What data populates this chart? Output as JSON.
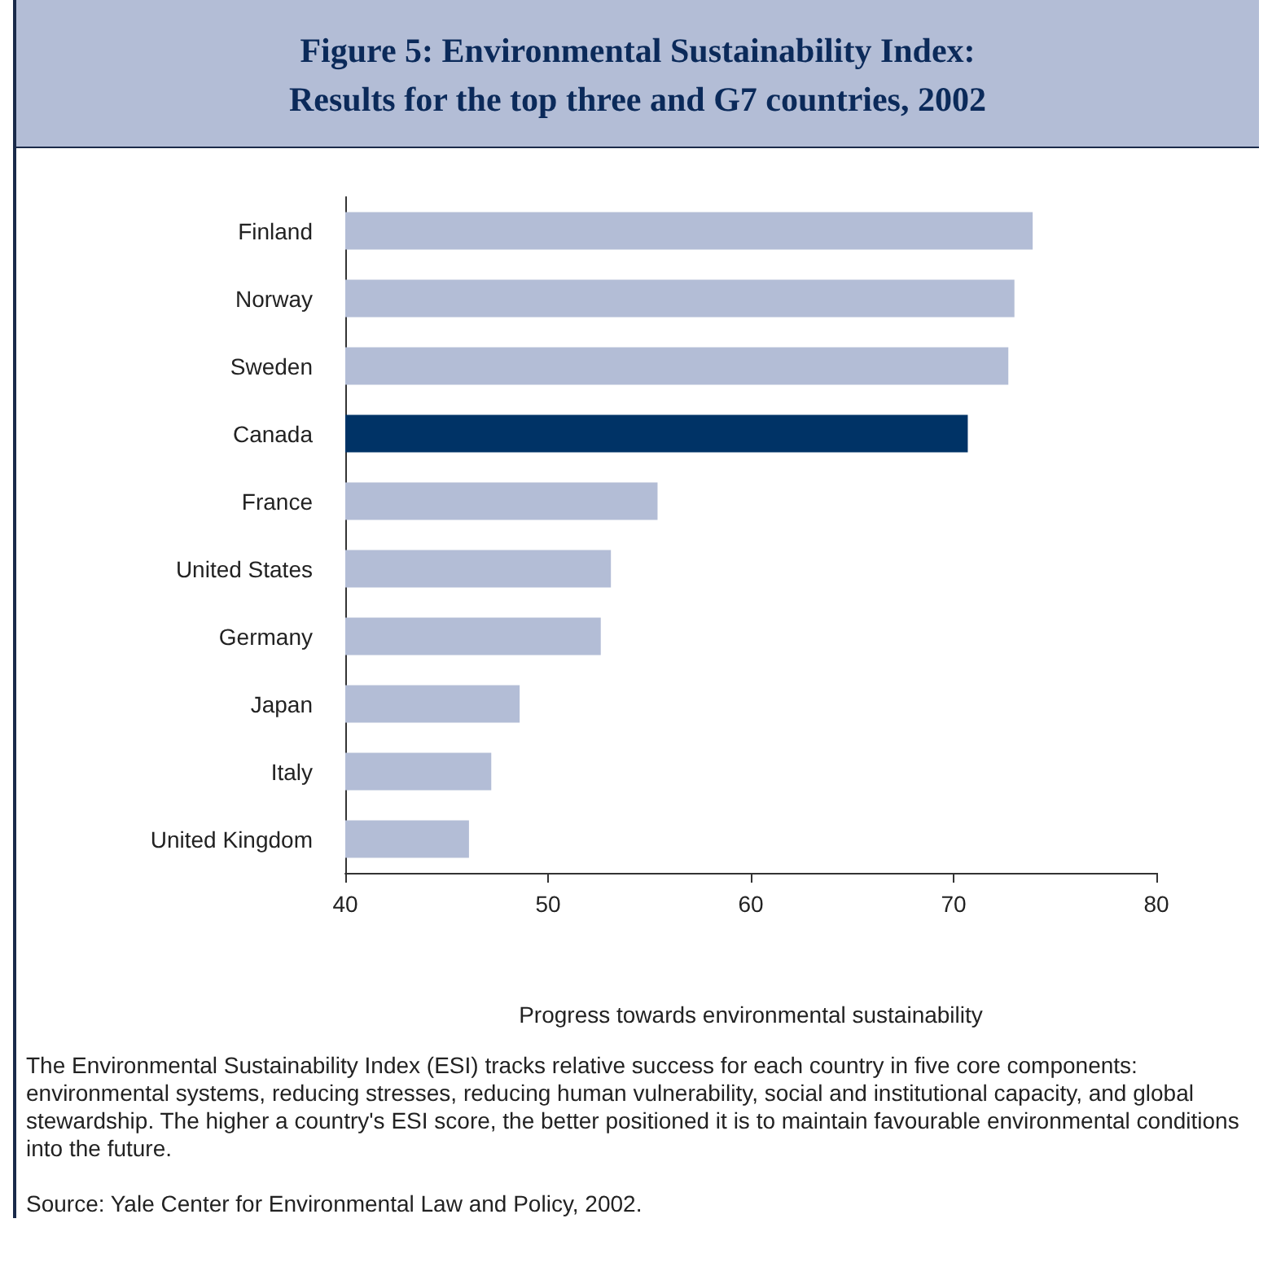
{
  "chart_data": {
    "type": "bar",
    "orientation": "horizontal",
    "title": "Figure 5: Environmental Sustainability Index:\nResults for the top three and G7 countries, 2002",
    "xlabel": "Progress towards environmental sustainability",
    "categories": [
      "Finland",
      "Norway",
      "Sweden",
      "Canada",
      "France",
      "United States",
      "Germany",
      "Japan",
      "Italy",
      "United Kingdom"
    ],
    "values": [
      73.9,
      73.0,
      72.7,
      70.7,
      55.4,
      53.1,
      52.6,
      48.6,
      47.2,
      46.1
    ],
    "colors": [
      "#b3bdd6",
      "#b3bdd6",
      "#b3bdd6",
      "#003366",
      "#b3bdd6",
      "#b3bdd6",
      "#b3bdd6",
      "#b3bdd6",
      "#b3bdd6",
      "#b3bdd6"
    ],
    "xlim": [
      40,
      80
    ],
    "xticks": [
      40,
      50,
      60,
      70,
      80
    ],
    "grid": false,
    "annotations": [
      "The Environmental Sustainability Index (ESI) tracks relative success for each country in five core components: environmental systems, reducing stresses, reducing human vulnerability, social and institutional capacity, and global stewardship. The higher a country's ESI score, the better positioned it is to maintain favourable environmental conditions into the future.",
      "Source: Yale Center for Environmental Law and Policy, 2002."
    ]
  }
}
